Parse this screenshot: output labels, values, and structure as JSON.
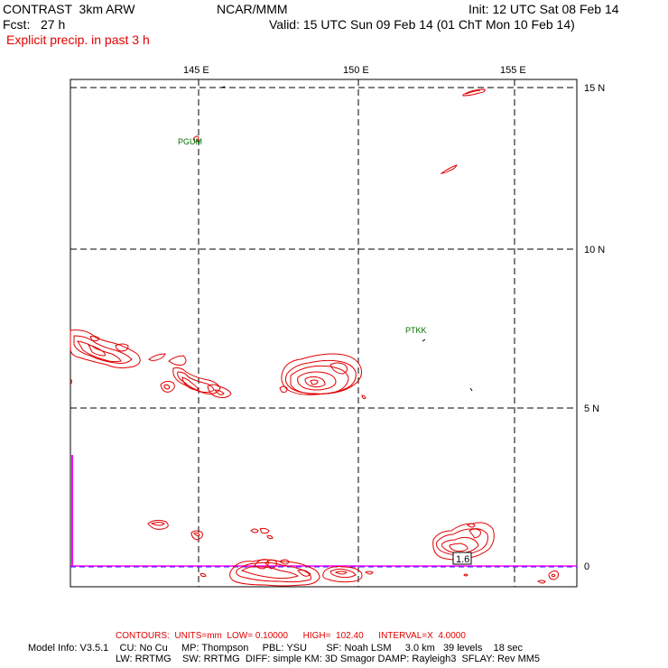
{
  "header": {
    "title": "CONTRAST  3km ARW",
    "center": "NCAR/MMM",
    "init": "Init: 12 UTC Sat 08 Feb 14",
    "fcst": "Fcst:   27 h",
    "valid": "Valid: 15 UTC Sun 09 Feb 14 (01 ChT Mon 10 Feb 14)",
    "field": "Explicit precip. in past 3 h"
  },
  "map": {
    "lon_labels": [
      "145 E",
      "150 E",
      "155 E"
    ],
    "lat_labels": [
      "15 N",
      "10 N",
      "5 N",
      "0"
    ],
    "stations": [
      "PGUM",
      "PTKK"
    ],
    "contour_label": "1.6",
    "colors": {
      "contour": "#e00000",
      "grid": "#000000",
      "station": "#007000",
      "magenta": "#ff00ff",
      "blue": "#2020ff"
    }
  },
  "footer": {
    "contours": "CONTOURS:  UNITS=mm  LOW= 0.10000      HIGH=  102.40      INTERVAL=X  4.0000",
    "model_line1": "Model Info: V3.5.1    CU: No Cu     MP: Thompson     PBL: YSU       SF: Noah LSM     3.0 km   39 levels    18 sec",
    "model_line2": "LW: RRTMG    SW: RRTMG  DIFF: simple KM: 3D Smagor DAMP: Rayleigh3  SFLAY: Rev MM5"
  }
}
